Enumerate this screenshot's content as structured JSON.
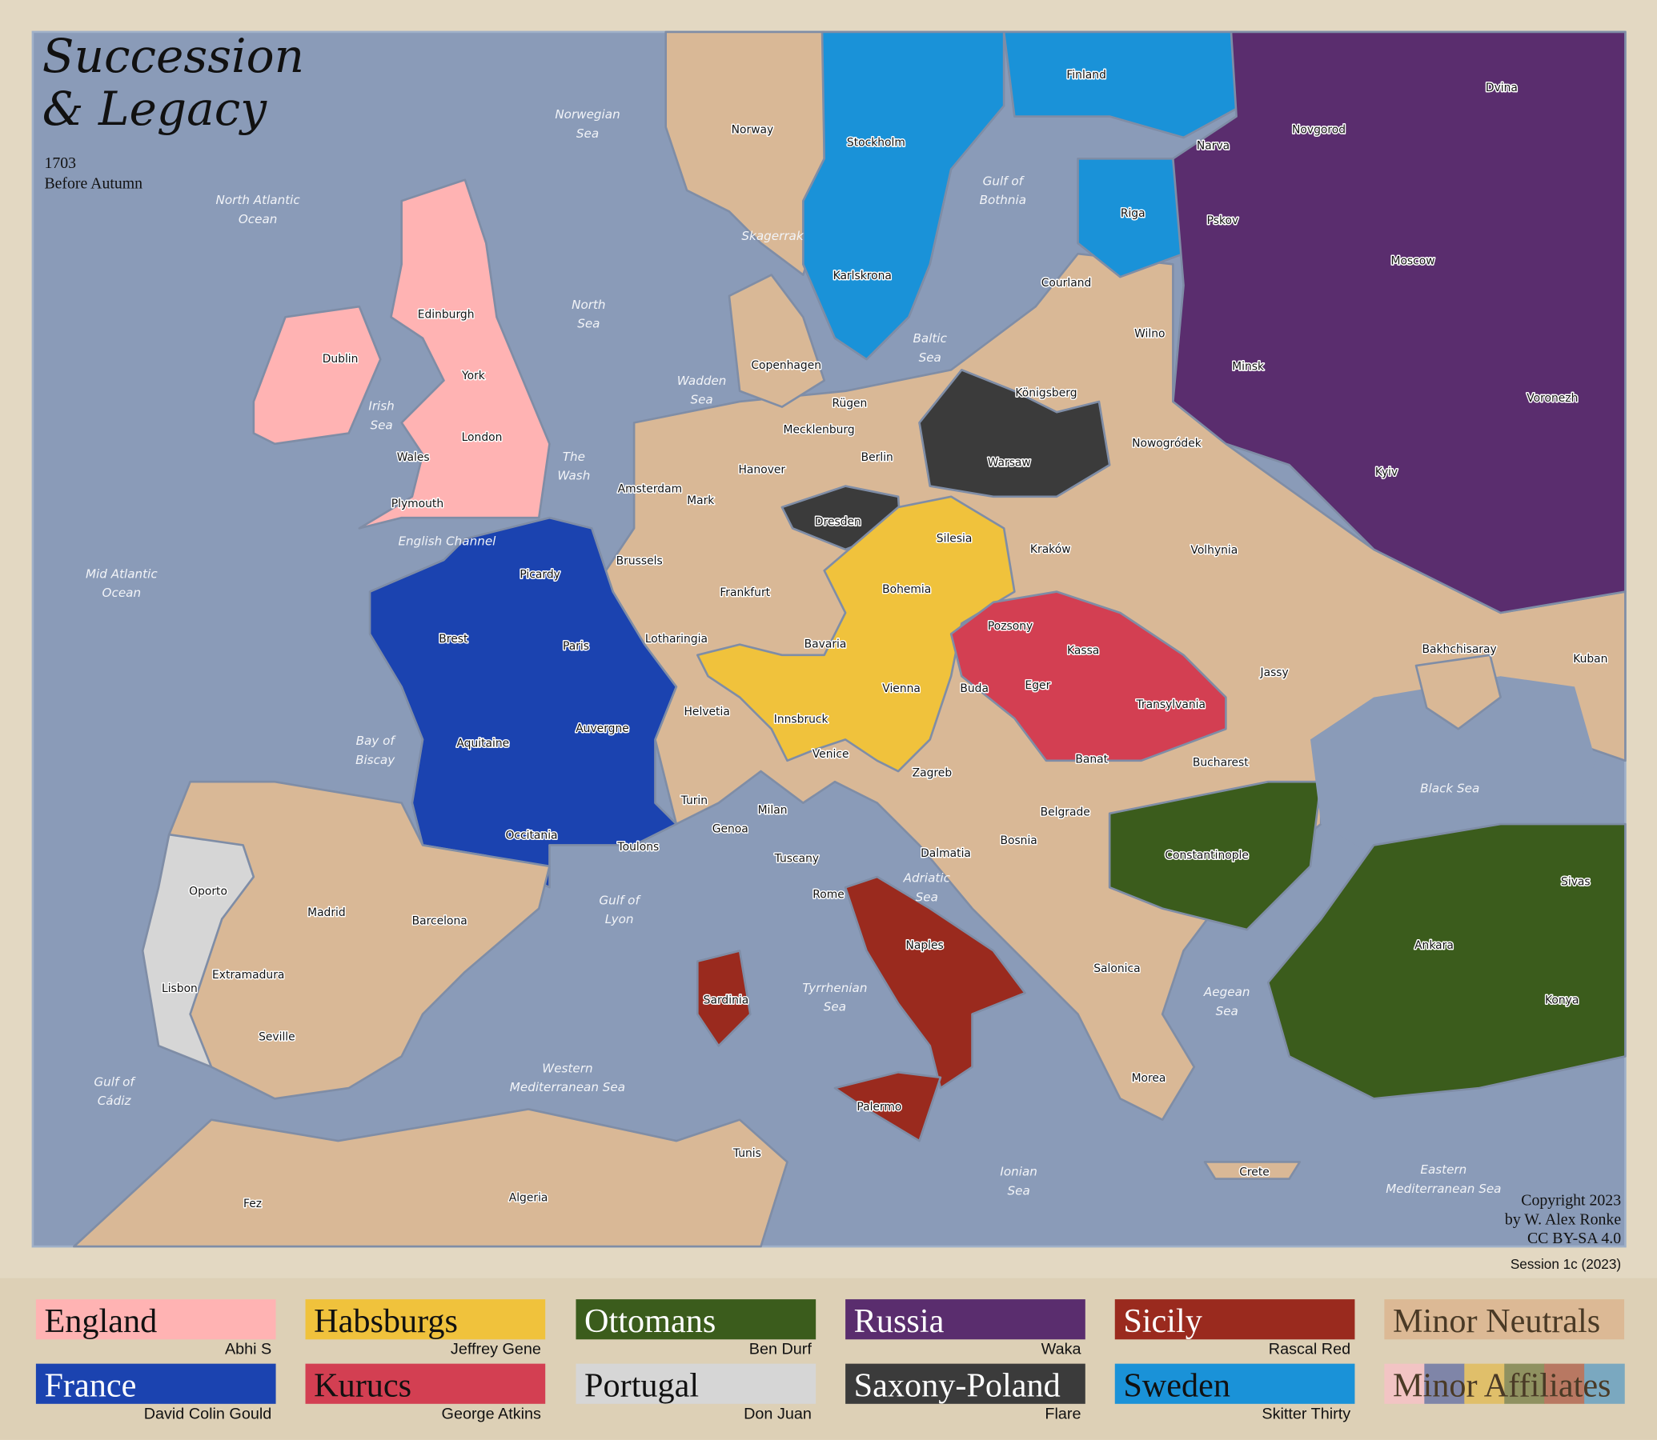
{
  "header": {
    "title_line1": "Succession",
    "title_line2": "& Legacy",
    "year": "1703",
    "phase": "Before Autumn"
  },
  "footer": {
    "copyright": [
      "Copyright 2023",
      "by W. Alex Ronke",
      "CC BY-SA 4.0"
    ],
    "session": "Session 1c (2023)"
  },
  "colors": {
    "sea": "#8a9bb8",
    "neutral_land": "#d9b896",
    "background": "#e3d8c2"
  },
  "legend": [
    {
      "power": "England",
      "player": "Abhi S",
      "color": "#ffb3b3",
      "text_color": "#111111"
    },
    {
      "power": "Habsburgs",
      "player": "Jeffrey Gene",
      "color": "#f0c23c",
      "text_color": "#111111"
    },
    {
      "power": "Ottomans",
      "player": "Ben Durf",
      "color": "#3b5c1c",
      "text_color": "#ffffff"
    },
    {
      "power": "Russia",
      "player": "Waka",
      "color": "#5a2d6e",
      "text_color": "#ffffff"
    },
    {
      "power": "Sicily",
      "player": "Rascal Red",
      "color": "#9a2a1e",
      "text_color": "#ffffff"
    },
    {
      "power": "Minor Neutrals",
      "player": "",
      "color": "#dcb995",
      "text_color": "#4a3a26"
    },
    {
      "power": "France",
      "player": "David Colin Gould",
      "color": "#1b43b0",
      "text_color": "#ffffff"
    },
    {
      "power": "Kurucs",
      "player": "George Atkins",
      "color": "#d33f52",
      "text_color": "#111111"
    },
    {
      "power": "Portugal",
      "player": "Don Juan",
      "color": "#d6d6d6",
      "text_color": "#111111"
    },
    {
      "power": "Saxony-Poland",
      "player": "Flare",
      "color": "#3b3b3b",
      "text_color": "#ffffff"
    },
    {
      "power": "Sweden",
      "player": "Skitter Thirty",
      "color": "#1a92d8",
      "text_color": "#111111"
    },
    {
      "power": "Minor Affiliates",
      "player": "",
      "color": "#dcb995",
      "text_color": "#4a3a26"
    }
  ],
  "affiliate_stripes": [
    "#f2c4c4",
    "#7f85a8",
    "#e0bf6a",
    "#8f9160",
    "#b87862",
    "#7aa8c0"
  ],
  "map": {
    "provinces": [
      "Norway",
      "Stockholm",
      "Finland",
      "Narva",
      "Novgorod",
      "Dvina",
      "Riga",
      "Pskov",
      "Moscow",
      "Courland",
      "Karlskrona",
      "Edinburgh",
      "Dublin",
      "York",
      "Copenhagen",
      "Wilno",
      "Königsberg",
      "Minsk",
      "Rügen",
      "Mecklenburg",
      "London",
      "Wales",
      "Berlin",
      "Hanover",
      "Amsterdam",
      "Mark",
      "Warsaw",
      "Nowogródek",
      "Voronezh",
      "Plymouth",
      "Dresden",
      "Silesia",
      "Kyiv",
      "Brussels",
      "Kraków",
      "Volhynia",
      "Picardy",
      "Frankfurt",
      "Bohemia",
      "Paris",
      "Brest",
      "Lotharingia",
      "Bavaria",
      "Pozsony",
      "Kassa",
      "Jassy",
      "Bakhchisaray",
      "Kuban",
      "Eger",
      "Vienna",
      "Buda",
      "Helvetia",
      "Innsbruck",
      "Transylvania",
      "Auvergne",
      "Aquitaine",
      "Venice",
      "Banat",
      "Bucharest",
      "Zagreb",
      "Turin",
      "Milan",
      "Belgrade",
      "Genoa",
      "Occitania",
      "Bosnia",
      "Toulons",
      "Constantinople",
      "Dalmatia",
      "Tuscany",
      "Oporto",
      "Rome",
      "Sivas",
      "Madrid",
      "Barcelona",
      "Naples",
      "Ankara",
      "Salonica",
      "Extramadura",
      "Lisbon",
      "Sardinia",
      "Konya",
      "Seville",
      "Morea",
      "Palermo",
      "Tunis",
      "Crete",
      "Fez",
      "Algeria"
    ],
    "seas": [
      {
        "lines": [
          "Norwegian",
          "Sea"
        ]
      },
      {
        "lines": [
          "North Atlantic",
          "Ocean"
        ]
      },
      {
        "lines": [
          "Gulf of",
          "Bothnia"
        ]
      },
      {
        "lines": [
          "Skagerrak"
        ]
      },
      {
        "lines": [
          "North",
          "Sea"
        ]
      },
      {
        "lines": [
          "Baltic",
          "Sea"
        ]
      },
      {
        "lines": [
          "Wadden",
          "Sea"
        ]
      },
      {
        "lines": [
          "Irish",
          "Sea"
        ]
      },
      {
        "lines": [
          "The",
          "Wash"
        ]
      },
      {
        "lines": [
          "English Channel"
        ]
      },
      {
        "lines": [
          "Mid Atlantic",
          "Ocean"
        ]
      },
      {
        "lines": [
          "Bay of",
          "Biscay"
        ]
      },
      {
        "lines": [
          "Black Sea"
        ]
      },
      {
        "lines": [
          "Adriatic",
          "Sea"
        ]
      },
      {
        "lines": [
          "Gulf of",
          "Lyon"
        ]
      },
      {
        "lines": [
          "Tyrrhenian",
          "Sea"
        ]
      },
      {
        "lines": [
          "Aegean",
          "Sea"
        ]
      },
      {
        "lines": [
          "Gulf of",
          "Cádiz"
        ]
      },
      {
        "lines": [
          "Western",
          "Mediterranean Sea"
        ]
      },
      {
        "lines": [
          "Ionian",
          "Sea"
        ]
      },
      {
        "lines": [
          "Eastern",
          "Mediterranean Sea"
        ]
      }
    ]
  }
}
